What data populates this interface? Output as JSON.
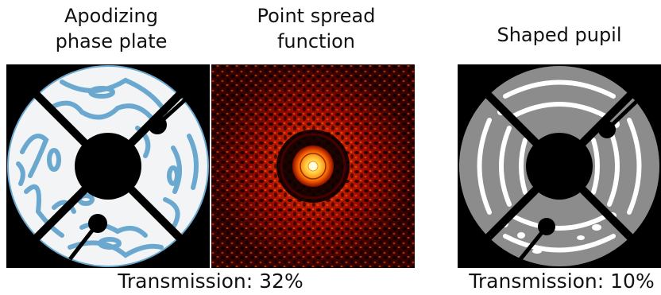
{
  "panels": {
    "phase_plate": {
      "title_line1": "Apodizing",
      "title_line2": "phase plate",
      "fill_color": "#f2f4f5",
      "pattern_color": "#6aa8d0"
    },
    "psf": {
      "title_line1": "Point spread",
      "title_line2": "function",
      "colormap": [
        "#000000",
        "#5a0000",
        "#b01000",
        "#ff4a00",
        "#ffb000",
        "#ffffc0"
      ]
    },
    "shaped_pupil": {
      "title": "Shaped pupil",
      "fill_color": "#8c8c8c",
      "gap_color": "#ffffff"
    }
  },
  "captions": {
    "left": "Transmission: 32%",
    "right": "Transmission: 10%"
  }
}
